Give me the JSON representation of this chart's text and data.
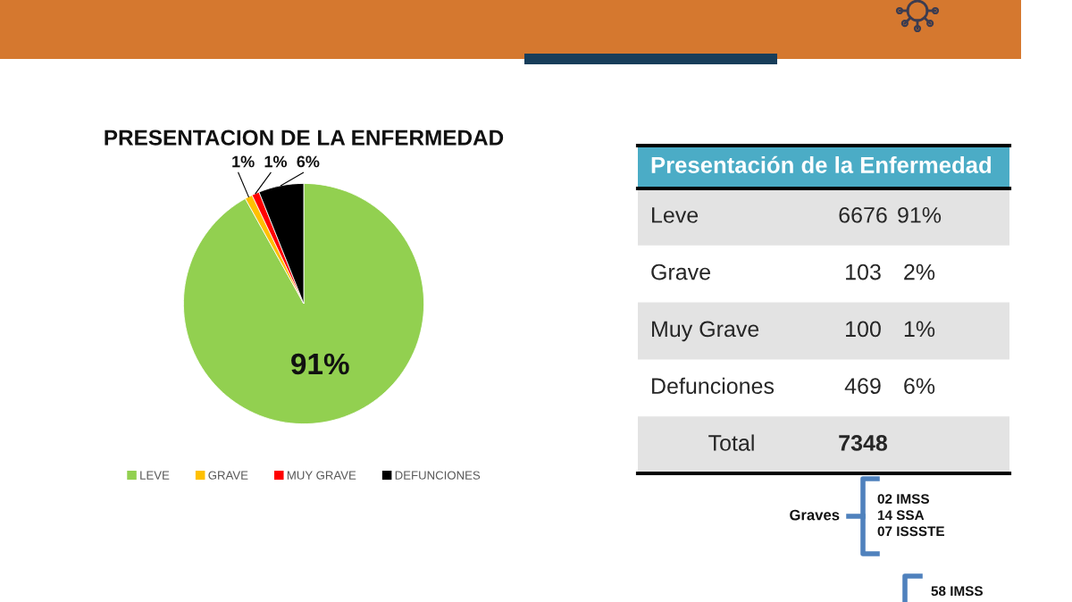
{
  "chart_data": [
    {
      "type": "pie",
      "title": "PRESENTACION DE LA ENFERMEDAD",
      "categories": [
        "LEVE",
        "GRAVE",
        "MUY GRAVE",
        "DEFUNCIONES"
      ],
      "values": [
        91,
        1,
        1,
        6
      ],
      "value_labels": [
        "91%",
        "1%",
        "1%",
        "6%"
      ],
      "colors": [
        "#92d050",
        "#ffc000",
        "#ff0000",
        "#000000"
      ],
      "legend": "bottom"
    },
    {
      "type": "other",
      "title": "Presentación de la Enfermedad",
      "categories": [
        "Leve",
        "Grave",
        "Muy Grave",
        "Defunciones",
        "Total"
      ],
      "data_labels": true,
      "series": [
        {
          "values": [
            6676,
            103,
            100,
            469,
            7348
          ]
        },
        {
          "values": [
            91,
            2,
            1,
            6,
            null
          ],
          "value_labels": [
            "91%",
            "2%",
            "1%",
            "6%",
            null
          ]
        }
      ],
      "annotations": [
        "Graves",
        "02 IMSS\n14 SSA\n07 ISSSTE",
        "58 IMSS"
      ]
    }
  ]
}
